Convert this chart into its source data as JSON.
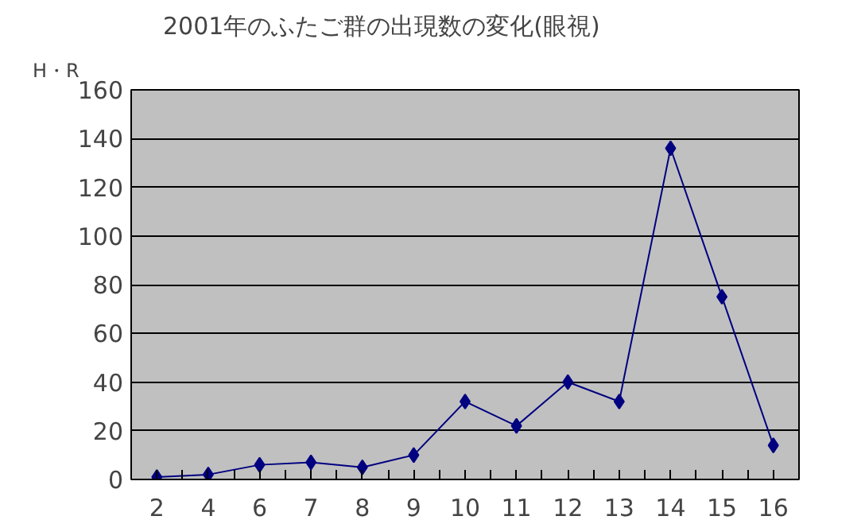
{
  "chart_data": {
    "type": "line",
    "title": "2001年のふたご群の出現数の変化(眼視)",
    "ylabel": "H・R",
    "categories": [
      "2",
      "4",
      "6",
      "7",
      "8",
      "9",
      "10",
      "11",
      "12",
      "13",
      "14",
      "15",
      "16"
    ],
    "series": [
      {
        "color": "#000080",
        "values": [
          1,
          2,
          6,
          7,
          5,
          10,
          32,
          22,
          40,
          32,
          136,
          75,
          14
        ]
      }
    ],
    "ylim": [
      0,
      160
    ],
    "yticks": [
      0,
      20,
      40,
      60,
      80,
      100,
      120,
      140,
      160
    ],
    "grid": "y",
    "marker": "diamond",
    "line_style": "solid"
  }
}
